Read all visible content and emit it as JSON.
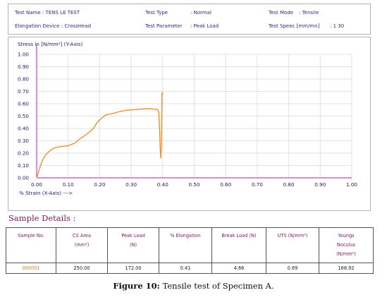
{
  "info": {
    "test_name_label": "Test Name",
    "test_name_value": ": TENS LE TEST",
    "test_type_label": "Test Type",
    "test_type_value": ": Normal",
    "test_mode_label": "Test Mode",
    "test_mode_value": ": Tensile",
    "elongation_label": "Elongation Device",
    "elongation_value": ": CrossHead",
    "parameter_label": "Test Parameter",
    "parameter_value": ": Peak Load",
    "speed_label": "Test Speec  [mm/mn]",
    "speed_value": ": 1 30"
  },
  "chart_data": {
    "type": "line",
    "ylabel": "Stress in [N/mm²] (Y-Axis)",
    "xlabel": "% Strain (X-Axis) --->",
    "xlim": [
      0,
      1
    ],
    "ylim": [
      0,
      1
    ],
    "x_ticks": [
      "0.00",
      "0.10",
      "0.20",
      "0.30",
      "0.40",
      "0.50",
      "0.60",
      "0.70",
      "0.80",
      "0.90",
      "1.00"
    ],
    "y_ticks": [
      "0.00",
      "0.10",
      "0.20",
      "0.30",
      "0.40",
      "0.50",
      "0.60",
      "0.70",
      "0.80",
      "0.90",
      "1.00"
    ],
    "grid": true,
    "line_color": "#f0902a",
    "series": [
      {
        "x": [
          0.0,
          0.005,
          0.012,
          0.02,
          0.03,
          0.04,
          0.05,
          0.06,
          0.08,
          0.1,
          0.12,
          0.14,
          0.16,
          0.18,
          0.19,
          0.2,
          0.21,
          0.22,
          0.24,
          0.26,
          0.28,
          0.3,
          0.32,
          0.34,
          0.36,
          0.375,
          0.38,
          0.385,
          0.388,
          0.39,
          0.392,
          0.394,
          0.396,
          0.397,
          0.398,
          0.399,
          0.4,
          0.401
        ],
        "y": [
          0.0,
          0.04,
          0.1,
          0.15,
          0.19,
          0.215,
          0.235,
          0.245,
          0.255,
          0.26,
          0.28,
          0.32,
          0.355,
          0.4,
          0.44,
          0.47,
          0.49,
          0.51,
          0.52,
          0.535,
          0.545,
          0.55,
          0.555,
          0.558,
          0.56,
          0.555,
          0.556,
          0.55,
          0.53,
          0.4,
          0.25,
          0.16,
          0.25,
          0.5,
          0.69,
          0.68,
          0.685,
          0.68
        ]
      }
    ]
  },
  "sample_title": "Sample Details :",
  "table": {
    "headers": [
      "Sample No.",
      "CS Area\n(mm²)",
      "Peak Load\n(N)",
      "% Elongation",
      "Break Load (N)",
      "UTS (N/mm²)",
      "Youngs\nNoculus\n(N/mm²)"
    ],
    "row": [
      "000001",
      "250.00",
      "172.00",
      "0.41",
      "4.66",
      "0.69",
      "168.92"
    ]
  },
  "caption": {
    "label": "Figure 10:",
    "text": " Tensile test of Specimen A."
  }
}
